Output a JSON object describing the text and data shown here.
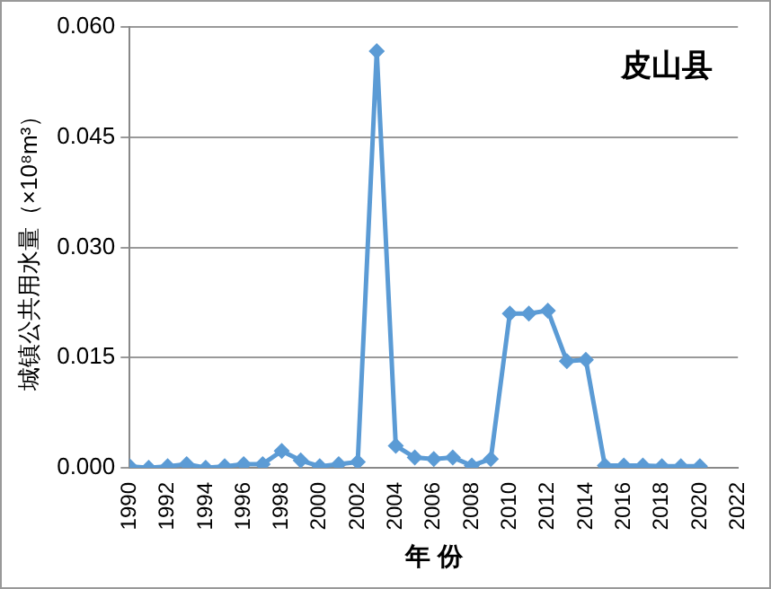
{
  "chart_data": {
    "type": "line",
    "title": "皮山县",
    "xlabel": "年 份",
    "ylabel": "城镇公共用水量（×10⁸m³）",
    "x": [
      1990,
      1991,
      1992,
      1993,
      1994,
      1995,
      1996,
      1997,
      1998,
      1999,
      2000,
      2001,
      2002,
      2003,
      2004,
      2005,
      2006,
      2007,
      2008,
      2009,
      2010,
      2011,
      2012,
      2013,
      2014,
      2015,
      2016,
      2017,
      2018,
      2019,
      2020
    ],
    "series": [
      {
        "color": "#5b9bd5",
        "values": [
          0.0002,
          0.0,
          0.0002,
          0.0005,
          0.0,
          0.0002,
          0.0005,
          0.0005,
          0.0023,
          0.001,
          0.0002,
          0.0005,
          0.0008,
          0.0567,
          0.003,
          0.0014,
          0.0012,
          0.0014,
          0.0003,
          0.0012,
          0.021,
          0.021,
          0.0214,
          0.0145,
          0.0147,
          0.0003,
          0.0003,
          0.0003,
          0.0002,
          0.0002,
          0.0002
        ]
      }
    ],
    "xlim": [
      1990,
      2022
    ],
    "xticks": [
      1990,
      1992,
      1994,
      1996,
      1998,
      2000,
      2002,
      2004,
      2006,
      2008,
      2010,
      2012,
      2014,
      2016,
      2018,
      2020,
      2022
    ],
    "ylim": [
      0,
      0.06
    ],
    "yticks": [
      {
        "value": 0,
        "label": "0.000"
      },
      {
        "value": 0.015,
        "label": "0.015"
      },
      {
        "value": 0.03,
        "label": "0.030"
      },
      {
        "value": 0.045,
        "label": "0.045"
      },
      {
        "value": 0.06,
        "label": "0.060"
      }
    ],
    "grid": "y",
    "legend": false,
    "marker": "diamond",
    "line_style": "solid"
  }
}
